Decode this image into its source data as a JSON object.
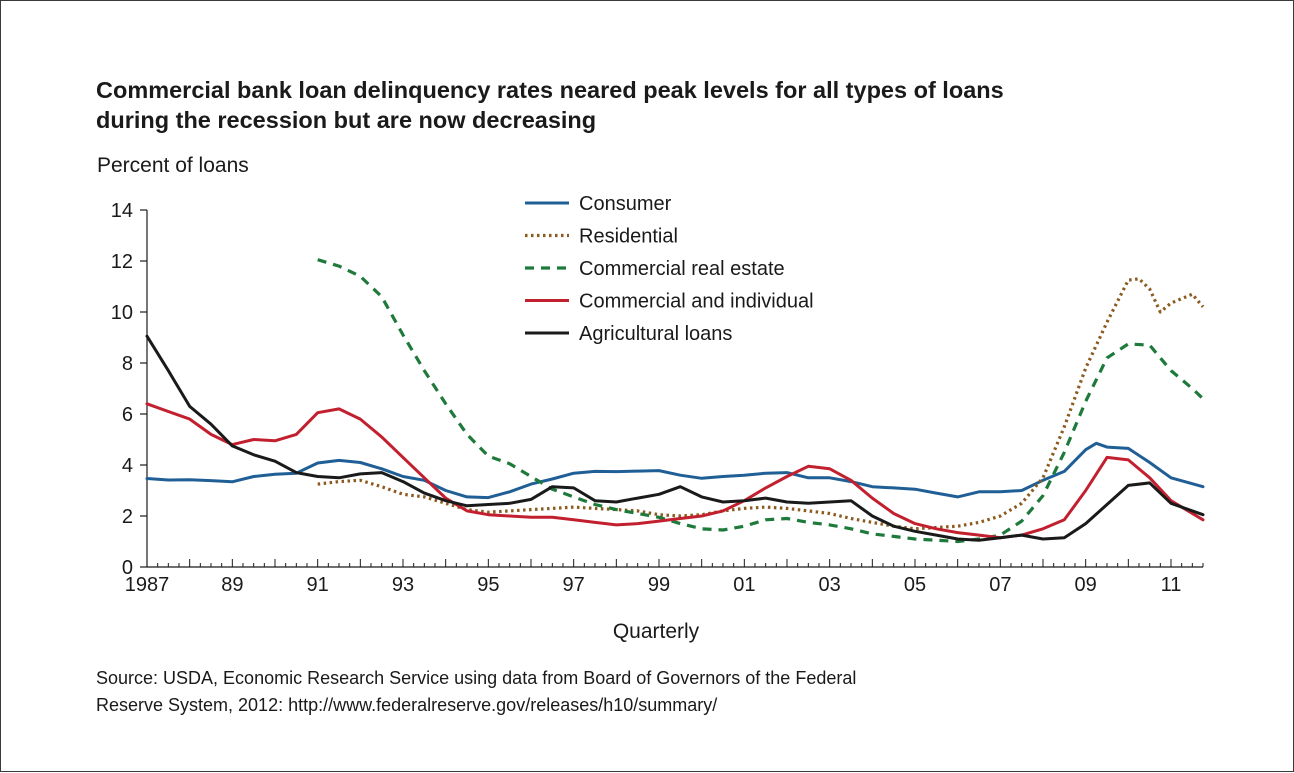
{
  "chart_data": {
    "type": "line",
    "title_line1": "Commercial bank loan delinquency rates neared peak levels for all types of loans",
    "title_line2": "during the recession but are now decreasing",
    "ylabel": "Percent of loans",
    "xlabel": "Quarterly",
    "ylim": [
      0,
      14
    ],
    "yticks": [
      0,
      2,
      4,
      6,
      8,
      10,
      12,
      14
    ],
    "xlim": [
      1987.0,
      2011.75
    ],
    "xtick_labels": [
      {
        "year": 1987,
        "label": "1987"
      },
      {
        "year": 1989,
        "label": "89"
      },
      {
        "year": 1991,
        "label": "91"
      },
      {
        "year": 1993,
        "label": "93"
      },
      {
        "year": 1995,
        "label": "95"
      },
      {
        "year": 1997,
        "label": "97"
      },
      {
        "year": 1999,
        "label": "99"
      },
      {
        "year": 2001,
        "label": "01"
      },
      {
        "year": 2003,
        "label": "03"
      },
      {
        "year": 2005,
        "label": "05"
      },
      {
        "year": 2007,
        "label": "07"
      },
      {
        "year": 2009,
        "label": "09"
      },
      {
        "year": 2011,
        "label": "11"
      }
    ],
    "grid": false,
    "legend_position": "top-center",
    "series": [
      {
        "name": "Consumer",
        "color": "#1f5f96",
        "style": "solid",
        "points": [
          [
            1987.0,
            3.47
          ],
          [
            1987.5,
            3.41
          ],
          [
            1988.0,
            3.42
          ],
          [
            1988.5,
            3.39
          ],
          [
            1989.0,
            3.34
          ],
          [
            1989.5,
            3.55
          ],
          [
            1990.0,
            3.64
          ],
          [
            1990.5,
            3.68
          ],
          [
            1991.0,
            4.08
          ],
          [
            1991.5,
            4.18
          ],
          [
            1992.0,
            4.1
          ],
          [
            1992.5,
            3.85
          ],
          [
            1993.0,
            3.55
          ],
          [
            1993.5,
            3.4
          ],
          [
            1994.0,
            3.0
          ],
          [
            1994.5,
            2.75
          ],
          [
            1995.0,
            2.72
          ],
          [
            1995.5,
            2.95
          ],
          [
            1996.0,
            3.25
          ],
          [
            1996.5,
            3.45
          ],
          [
            1997.0,
            3.68
          ],
          [
            1997.5,
            3.75
          ],
          [
            1998.0,
            3.74
          ],
          [
            1998.5,
            3.76
          ],
          [
            1999.0,
            3.78
          ],
          [
            1999.5,
            3.6
          ],
          [
            2000.0,
            3.48
          ],
          [
            2000.5,
            3.55
          ],
          [
            2001.0,
            3.6
          ],
          [
            2001.5,
            3.68
          ],
          [
            2002.0,
            3.7
          ],
          [
            2002.5,
            3.5
          ],
          [
            2003.0,
            3.5
          ],
          [
            2003.5,
            3.35
          ],
          [
            2004.0,
            3.15
          ],
          [
            2004.5,
            3.1
          ],
          [
            2005.0,
            3.05
          ],
          [
            2005.5,
            2.9
          ],
          [
            2006.0,
            2.75
          ],
          [
            2006.5,
            2.95
          ],
          [
            2007.0,
            2.95
          ],
          [
            2007.5,
            3.0
          ],
          [
            2008.0,
            3.4
          ],
          [
            2008.5,
            3.75
          ],
          [
            2009.0,
            4.6
          ],
          [
            2009.25,
            4.85
          ],
          [
            2009.5,
            4.7
          ],
          [
            2010.0,
            4.65
          ],
          [
            2010.5,
            4.1
          ],
          [
            2011.0,
            3.5
          ],
          [
            2011.75,
            3.15
          ]
        ]
      },
      {
        "name": "Residential",
        "color": "#8a5a1e",
        "style": "dotted",
        "points": [
          [
            1991.0,
            3.25
          ],
          [
            1991.5,
            3.35
          ],
          [
            1992.0,
            3.4
          ],
          [
            1992.5,
            3.15
          ],
          [
            1993.0,
            2.85
          ],
          [
            1993.5,
            2.75
          ],
          [
            1994.0,
            2.5
          ],
          [
            1994.5,
            2.25
          ],
          [
            1995.0,
            2.15
          ],
          [
            1995.5,
            2.2
          ],
          [
            1996.0,
            2.25
          ],
          [
            1996.5,
            2.3
          ],
          [
            1997.0,
            2.35
          ],
          [
            1997.5,
            2.3
          ],
          [
            1998.0,
            2.25
          ],
          [
            1998.5,
            2.2
          ],
          [
            1999.0,
            2.05
          ],
          [
            1999.5,
            2.0
          ],
          [
            2000.0,
            2.05
          ],
          [
            2000.5,
            2.2
          ],
          [
            2001.0,
            2.3
          ],
          [
            2001.5,
            2.35
          ],
          [
            2002.0,
            2.3
          ],
          [
            2002.5,
            2.2
          ],
          [
            2003.0,
            2.1
          ],
          [
            2003.5,
            1.9
          ],
          [
            2004.0,
            1.75
          ],
          [
            2004.5,
            1.6
          ],
          [
            2005.0,
            1.5
          ],
          [
            2005.5,
            1.55
          ],
          [
            2006.0,
            1.6
          ],
          [
            2006.5,
            1.75
          ],
          [
            2007.0,
            2.0
          ],
          [
            2007.5,
            2.5
          ],
          [
            2008.0,
            3.5
          ],
          [
            2008.5,
            5.5
          ],
          [
            2009.0,
            7.8
          ],
          [
            2009.5,
            9.6
          ],
          [
            2010.0,
            11.25
          ],
          [
            2010.25,
            11.3
          ],
          [
            2010.5,
            10.9
          ],
          [
            2010.75,
            10.0
          ],
          [
            2011.0,
            10.35
          ],
          [
            2011.5,
            10.7
          ],
          [
            2011.75,
            10.2
          ]
        ]
      },
      {
        "name": "Commercial real estate",
        "color": "#1e7a3a",
        "style": "dashed",
        "points": [
          [
            1991.0,
            12.05
          ],
          [
            1991.5,
            11.8
          ],
          [
            1992.0,
            11.4
          ],
          [
            1992.5,
            10.6
          ],
          [
            1993.0,
            9.1
          ],
          [
            1993.5,
            7.7
          ],
          [
            1994.0,
            6.4
          ],
          [
            1994.5,
            5.2
          ],
          [
            1995.0,
            4.35
          ],
          [
            1995.5,
            4.05
          ],
          [
            1996.0,
            3.55
          ],
          [
            1996.5,
            3.05
          ],
          [
            1997.0,
            2.75
          ],
          [
            1997.5,
            2.45
          ],
          [
            1998.0,
            2.25
          ],
          [
            1998.5,
            2.1
          ],
          [
            1999.0,
            1.95
          ],
          [
            1999.5,
            1.7
          ],
          [
            2000.0,
            1.5
          ],
          [
            2000.5,
            1.45
          ],
          [
            2001.0,
            1.6
          ],
          [
            2001.5,
            1.85
          ],
          [
            2002.0,
            1.9
          ],
          [
            2002.5,
            1.75
          ],
          [
            2003.0,
            1.65
          ],
          [
            2003.5,
            1.5
          ],
          [
            2004.0,
            1.3
          ],
          [
            2004.5,
            1.2
          ],
          [
            2005.0,
            1.1
          ],
          [
            2005.5,
            1.05
          ],
          [
            2006.0,
            1.0
          ],
          [
            2006.5,
            1.1
          ],
          [
            2007.0,
            1.25
          ],
          [
            2007.5,
            1.8
          ],
          [
            2008.0,
            2.8
          ],
          [
            2008.5,
            4.5
          ],
          [
            2009.0,
            6.5
          ],
          [
            2009.5,
            8.2
          ],
          [
            2010.0,
            8.75
          ],
          [
            2010.5,
            8.7
          ],
          [
            2011.0,
            7.7
          ],
          [
            2011.5,
            7.0
          ],
          [
            2011.75,
            6.6
          ]
        ]
      },
      {
        "name": "Commercial and individual",
        "color": "#c2202f",
        "style": "solid",
        "points": [
          [
            1987.0,
            6.4
          ],
          [
            1987.5,
            6.1
          ],
          [
            1988.0,
            5.8
          ],
          [
            1988.5,
            5.2
          ],
          [
            1989.0,
            4.8
          ],
          [
            1989.5,
            5.0
          ],
          [
            1990.0,
            4.95
          ],
          [
            1990.5,
            5.2
          ],
          [
            1991.0,
            6.05
          ],
          [
            1991.5,
            6.2
          ],
          [
            1992.0,
            5.8
          ],
          [
            1992.5,
            5.1
          ],
          [
            1993.0,
            4.3
          ],
          [
            1993.5,
            3.5
          ],
          [
            1994.0,
            2.7
          ],
          [
            1994.5,
            2.2
          ],
          [
            1995.0,
            2.05
          ],
          [
            1995.5,
            2.0
          ],
          [
            1996.0,
            1.95
          ],
          [
            1996.5,
            1.95
          ],
          [
            1997.0,
            1.85
          ],
          [
            1997.5,
            1.75
          ],
          [
            1998.0,
            1.65
          ],
          [
            1998.5,
            1.7
          ],
          [
            1999.0,
            1.8
          ],
          [
            1999.5,
            1.9
          ],
          [
            2000.0,
            2.0
          ],
          [
            2000.5,
            2.2
          ],
          [
            2001.0,
            2.6
          ],
          [
            2001.5,
            3.1
          ],
          [
            2002.0,
            3.55
          ],
          [
            2002.5,
            3.95
          ],
          [
            2003.0,
            3.85
          ],
          [
            2003.5,
            3.4
          ],
          [
            2004.0,
            2.7
          ],
          [
            2004.5,
            2.1
          ],
          [
            2005.0,
            1.7
          ],
          [
            2005.5,
            1.5
          ],
          [
            2006.0,
            1.35
          ],
          [
            2006.5,
            1.25
          ],
          [
            2007.0,
            1.15
          ],
          [
            2007.5,
            1.25
          ],
          [
            2008.0,
            1.5
          ],
          [
            2008.5,
            1.85
          ],
          [
            2009.0,
            3.0
          ],
          [
            2009.5,
            4.3
          ],
          [
            2010.0,
            4.2
          ],
          [
            2010.5,
            3.5
          ],
          [
            2011.0,
            2.6
          ],
          [
            2011.75,
            1.85
          ]
        ]
      },
      {
        "name": "Agricultural loans",
        "color": "#1a1a1a",
        "style": "solid",
        "points": [
          [
            1987.0,
            9.05
          ],
          [
            1987.5,
            7.7
          ],
          [
            1988.0,
            6.3
          ],
          [
            1988.5,
            5.6
          ],
          [
            1989.0,
            4.75
          ],
          [
            1989.5,
            4.4
          ],
          [
            1990.0,
            4.15
          ],
          [
            1990.5,
            3.7
          ],
          [
            1991.0,
            3.55
          ],
          [
            1991.5,
            3.5
          ],
          [
            1992.0,
            3.65
          ],
          [
            1992.5,
            3.7
          ],
          [
            1993.0,
            3.35
          ],
          [
            1993.5,
            2.9
          ],
          [
            1994.0,
            2.6
          ],
          [
            1994.5,
            2.4
          ],
          [
            1995.0,
            2.45
          ],
          [
            1995.5,
            2.5
          ],
          [
            1996.0,
            2.65
          ],
          [
            1996.5,
            3.15
          ],
          [
            1997.0,
            3.1
          ],
          [
            1997.5,
            2.6
          ],
          [
            1998.0,
            2.55
          ],
          [
            1998.5,
            2.7
          ],
          [
            1999.0,
            2.85
          ],
          [
            1999.5,
            3.15
          ],
          [
            2000.0,
            2.75
          ],
          [
            2000.5,
            2.55
          ],
          [
            2001.0,
            2.6
          ],
          [
            2001.5,
            2.7
          ],
          [
            2002.0,
            2.55
          ],
          [
            2002.5,
            2.5
          ],
          [
            2003.0,
            2.55
          ],
          [
            2003.5,
            2.6
          ],
          [
            2004.0,
            2.0
          ],
          [
            2004.5,
            1.6
          ],
          [
            2005.0,
            1.4
          ],
          [
            2005.5,
            1.25
          ],
          [
            2006.0,
            1.1
          ],
          [
            2006.5,
            1.05
          ],
          [
            2007.0,
            1.15
          ],
          [
            2007.5,
            1.25
          ],
          [
            2008.0,
            1.1
          ],
          [
            2008.5,
            1.15
          ],
          [
            2009.0,
            1.7
          ],
          [
            2009.5,
            2.45
          ],
          [
            2010.0,
            3.2
          ],
          [
            2010.5,
            3.3
          ],
          [
            2011.0,
            2.5
          ],
          [
            2011.75,
            2.05
          ]
        ]
      }
    ]
  },
  "source_line1": "Source: USDA, Economic Research Service using data from Board of Governors of the Federal",
  "source_line2": "Reserve System, 2012:  http://www.federalreserve.gov/releases/h10/summary/"
}
